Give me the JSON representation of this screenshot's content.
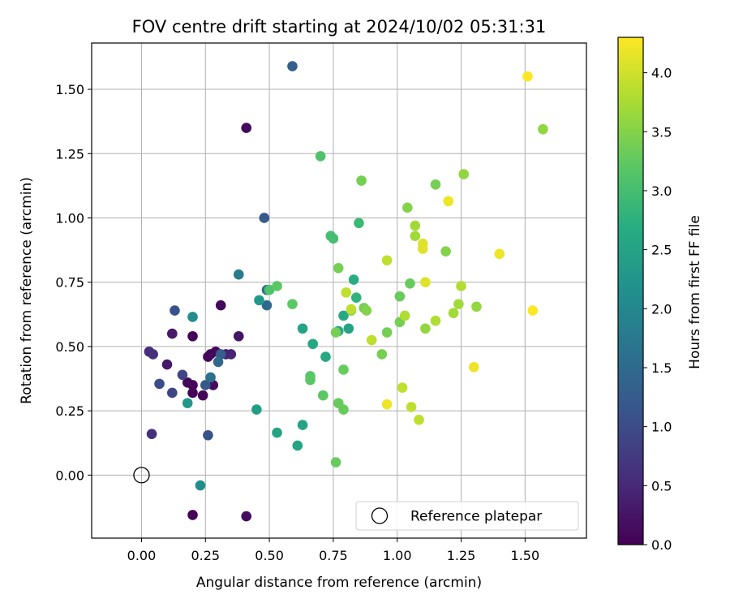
{
  "chart_data": {
    "type": "scatter",
    "title": "FOV centre drift starting at 2024/10/02 05:31:31",
    "xlabel": "Angular distance from reference (arcmin)",
    "ylabel": "Rotation from reference (arcmin)",
    "xlim": [
      -0.195,
      1.74
    ],
    "ylim": [
      -0.245,
      1.68
    ],
    "xticks": [
      "0.00",
      "0.25",
      "0.50",
      "0.75",
      "1.00",
      "1.25",
      "1.50"
    ],
    "xtick_values": [
      0,
      0.25,
      0.5,
      0.75,
      1.0,
      1.25,
      1.5
    ],
    "yticks": [
      "0.00",
      "0.25",
      "0.50",
      "0.75",
      "1.00",
      "1.25",
      "1.50"
    ],
    "ytick_values": [
      0,
      0.25,
      0.5,
      0.75,
      1.0,
      1.25,
      1.5
    ],
    "grid": true,
    "colormap": "viridis",
    "colorbar": {
      "label": "Hours from first FF file",
      "min": 0.0,
      "max": 4.3,
      "ticks": [
        "0.0",
        "0.5",
        "1.0",
        "1.5",
        "2.0",
        "2.5",
        "3.0",
        "3.5",
        "4.0"
      ],
      "tick_values": [
        0,
        0.5,
        1.0,
        1.5,
        2.0,
        2.5,
        3.0,
        3.5,
        4.0
      ]
    },
    "legend": {
      "placement": "lower-right",
      "entries": [
        "Reference platepar"
      ]
    },
    "reference_point": {
      "x": 0.0,
      "y": 0.0
    },
    "points": [
      {
        "x": 0.2,
        "y": 0.54,
        "c": 0.05
      },
      {
        "x": 0.27,
        "y": 0.47,
        "c": 0.1
      },
      {
        "x": 0.29,
        "y": 0.48,
        "c": 0.1
      },
      {
        "x": 0.26,
        "y": 0.46,
        "c": 0.1
      },
      {
        "x": 0.31,
        "y": 0.66,
        "c": 0.1
      },
      {
        "x": 0.41,
        "y": 1.35,
        "c": 0.1
      },
      {
        "x": 0.2,
        "y": 0.32,
        "c": 0.05
      },
      {
        "x": 0.24,
        "y": 0.31,
        "c": 0.05
      },
      {
        "x": 0.18,
        "y": 0.36,
        "c": 0.1
      },
      {
        "x": 0.2,
        "y": 0.35,
        "c": 0.1
      },
      {
        "x": 0.28,
        "y": 0.35,
        "c": 0.15
      },
      {
        "x": 0.2,
        "y": -0.155,
        "c": 0.05
      },
      {
        "x": 0.41,
        "y": -0.16,
        "c": 0.15
      },
      {
        "x": 0.38,
        "y": 0.54,
        "c": 0.25
      },
      {
        "x": 0.12,
        "y": 0.55,
        "c": 0.3
      },
      {
        "x": 0.1,
        "y": 0.43,
        "c": 0.3
      },
      {
        "x": 0.33,
        "y": 0.47,
        "c": 0.4
      },
      {
        "x": 0.35,
        "y": 0.47,
        "c": 0.45
      },
      {
        "x": 0.03,
        "y": 0.48,
        "c": 0.55
      },
      {
        "x": 0.045,
        "y": 0.47,
        "c": 0.6
      },
      {
        "x": 0.04,
        "y": 0.16,
        "c": 0.6
      },
      {
        "x": 0.12,
        "y": 0.32,
        "c": 0.9
      },
      {
        "x": 0.16,
        "y": 0.39,
        "c": 0.9
      },
      {
        "x": 0.07,
        "y": 0.355,
        "c": 1.0
      },
      {
        "x": 0.13,
        "y": 0.64,
        "c": 1.1
      },
      {
        "x": 0.26,
        "y": 0.155,
        "c": 1.1
      },
      {
        "x": 0.25,
        "y": 0.35,
        "c": 1.2
      },
      {
        "x": 0.31,
        "y": 0.47,
        "c": 1.3
      },
      {
        "x": 0.3,
        "y": 0.44,
        "c": 1.5
      },
      {
        "x": 0.27,
        "y": 0.38,
        "c": 1.6
      },
      {
        "x": 0.48,
        "y": 1.0,
        "c": 1.2
      },
      {
        "x": 0.59,
        "y": 1.59,
        "c": 1.3
      },
      {
        "x": 0.49,
        "y": 0.66,
        "c": 1.5
      },
      {
        "x": 0.49,
        "y": 0.72,
        "c": 1.6
      },
      {
        "x": 0.38,
        "y": 0.78,
        "c": 1.8
      },
      {
        "x": 0.2,
        "y": 0.615,
        "c": 2.1
      },
      {
        "x": 0.23,
        "y": -0.04,
        "c": 2.1
      },
      {
        "x": 0.18,
        "y": 0.28,
        "c": 2.3
      },
      {
        "x": 0.46,
        "y": 0.68,
        "c": 2.3
      },
      {
        "x": 0.45,
        "y": 0.255,
        "c": 2.4
      },
      {
        "x": 0.53,
        "y": 0.165,
        "c": 2.5
      },
      {
        "x": 0.61,
        "y": 0.115,
        "c": 2.5
      },
      {
        "x": 0.63,
        "y": 0.195,
        "c": 2.5
      },
      {
        "x": 0.63,
        "y": 0.57,
        "c": 2.5
      },
      {
        "x": 0.67,
        "y": 0.51,
        "c": 2.6
      },
      {
        "x": 0.72,
        "y": 0.46,
        "c": 2.6
      },
      {
        "x": 0.77,
        "y": 0.56,
        "c": 2.5
      },
      {
        "x": 0.79,
        "y": 0.62,
        "c": 2.6
      },
      {
        "x": 0.81,
        "y": 0.57,
        "c": 2.5
      },
      {
        "x": 0.83,
        "y": 0.76,
        "c": 2.7
      },
      {
        "x": 0.84,
        "y": 0.69,
        "c": 2.8
      },
      {
        "x": 0.85,
        "y": 0.98,
        "c": 2.9
      },
      {
        "x": 0.74,
        "y": 0.93,
        "c": 3.0
      },
      {
        "x": 0.75,
        "y": 0.92,
        "c": 3.0
      },
      {
        "x": 0.7,
        "y": 1.24,
        "c": 3.1
      },
      {
        "x": 0.5,
        "y": 0.72,
        "c": 3.1
      },
      {
        "x": 0.53,
        "y": 0.735,
        "c": 3.2
      },
      {
        "x": 0.59,
        "y": 0.665,
        "c": 3.2
      },
      {
        "x": 0.66,
        "y": 0.385,
        "c": 3.2
      },
      {
        "x": 0.66,
        "y": 0.37,
        "c": 3.2
      },
      {
        "x": 0.71,
        "y": 0.31,
        "c": 3.2
      },
      {
        "x": 0.76,
        "y": 0.05,
        "c": 3.3
      },
      {
        "x": 0.77,
        "y": 0.28,
        "c": 3.3
      },
      {
        "x": 0.79,
        "y": 0.255,
        "c": 3.3
      },
      {
        "x": 0.79,
        "y": 0.41,
        "c": 3.3
      },
      {
        "x": 0.76,
        "y": 0.555,
        "c": 3.4
      },
      {
        "x": 0.77,
        "y": 0.805,
        "c": 3.4
      },
      {
        "x": 0.86,
        "y": 1.145,
        "c": 3.4
      },
      {
        "x": 0.82,
        "y": 0.64,
        "c": 3.4
      },
      {
        "x": 0.87,
        "y": 0.65,
        "c": 3.4
      },
      {
        "x": 0.88,
        "y": 0.64,
        "c": 3.5
      },
      {
        "x": 0.94,
        "y": 0.47,
        "c": 3.4
      },
      {
        "x": 0.96,
        "y": 0.555,
        "c": 3.4
      },
      {
        "x": 1.01,
        "y": 0.595,
        "c": 3.4
      },
      {
        "x": 1.01,
        "y": 0.695,
        "c": 3.3
      },
      {
        "x": 1.05,
        "y": 0.745,
        "c": 3.3
      },
      {
        "x": 1.04,
        "y": 1.04,
        "c": 3.5
      },
      {
        "x": 1.07,
        "y": 0.97,
        "c": 3.7
      },
      {
        "x": 1.07,
        "y": 0.93,
        "c": 3.7
      },
      {
        "x": 1.15,
        "y": 1.13,
        "c": 3.4
      },
      {
        "x": 1.26,
        "y": 1.17,
        "c": 3.6
      },
      {
        "x": 1.11,
        "y": 0.57,
        "c": 3.6
      },
      {
        "x": 1.15,
        "y": 0.6,
        "c": 3.8
      },
      {
        "x": 1.19,
        "y": 0.87,
        "c": 3.5
      },
      {
        "x": 1.22,
        "y": 0.63,
        "c": 3.7
      },
      {
        "x": 1.24,
        "y": 0.665,
        "c": 3.7
      },
      {
        "x": 1.25,
        "y": 0.735,
        "c": 3.8
      },
      {
        "x": 1.31,
        "y": 0.655,
        "c": 3.6
      },
      {
        "x": 1.57,
        "y": 1.345,
        "c": 3.6
      },
      {
        "x": 1.03,
        "y": 0.62,
        "c": 3.8
      },
      {
        "x": 1.055,
        "y": 0.265,
        "c": 3.9
      },
      {
        "x": 1.02,
        "y": 0.34,
        "c": 3.9
      },
      {
        "x": 0.96,
        "y": 0.835,
        "c": 3.9
      },
      {
        "x": 0.9,
        "y": 0.525,
        "c": 3.9
      },
      {
        "x": 0.8,
        "y": 0.71,
        "c": 3.9
      },
      {
        "x": 0.82,
        "y": 0.645,
        "c": 3.9
      },
      {
        "x": 1.085,
        "y": 0.215,
        "c": 3.9
      },
      {
        "x": 1.1,
        "y": 0.9,
        "c": 4.1
      },
      {
        "x": 1.1,
        "y": 0.88,
        "c": 4.1
      },
      {
        "x": 1.11,
        "y": 0.75,
        "c": 4.1
      },
      {
        "x": 1.2,
        "y": 1.065,
        "c": 4.2
      },
      {
        "x": 0.96,
        "y": 0.275,
        "c": 4.2
      },
      {
        "x": 1.3,
        "y": 0.42,
        "c": 4.2
      },
      {
        "x": 1.4,
        "y": 0.86,
        "c": 4.2
      },
      {
        "x": 1.53,
        "y": 0.64,
        "c": 4.3
      },
      {
        "x": 1.51,
        "y": 1.55,
        "c": 4.3
      }
    ]
  }
}
